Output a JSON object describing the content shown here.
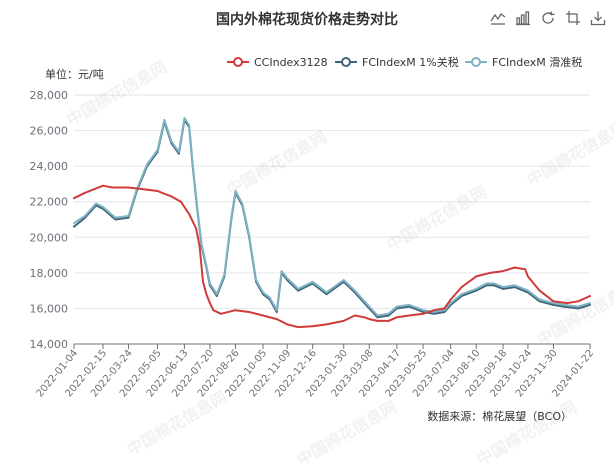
{
  "toolbox": {
    "items": [
      {
        "name": "line-chart-icon"
      },
      {
        "name": "bar-chart-icon"
      },
      {
        "name": "refresh-icon"
      },
      {
        "name": "crop-icon"
      },
      {
        "name": "download-icon"
      }
    ]
  },
  "watermark_text": "中国棉花信息网",
  "colors": {
    "series": [
      "#d03b3b",
      "#3d6479",
      "#7fb3c4"
    ],
    "axis": "#6e7079",
    "grid": "#e3e6ec",
    "text": "#333333"
  },
  "chart_data": {
    "type": "line",
    "title": "国内外棉花现货价格走势对比",
    "yunit": "单位：元/吨",
    "source": "数据来源：棉花展望（BCO）",
    "ylim": [
      14000,
      28000
    ],
    "yticks": [
      14000,
      16000,
      18000,
      20000,
      22000,
      24000,
      26000,
      28000
    ],
    "ytick_labels": [
      "14,000",
      "16,000",
      "18,000",
      "20,000",
      "22,000",
      "24,000",
      "26,000",
      "28,000"
    ],
    "xlim": [
      "2022-01-04",
      "2024-01-22"
    ],
    "xtick_labels": [
      "2022-01-04",
      "2022-02-15",
      "2022-03-24",
      "2022-05-05",
      "2022-06-13",
      "2022-07-20",
      "2022-08-26",
      "2022-10-05",
      "2022-11-09",
      "2022-12-16",
      "2023-01-30",
      "2023-03-08",
      "2023-04-17",
      "2023-05-25",
      "2023-07-04",
      "2023-08-10",
      "2023-09-18",
      "2023-10-24",
      "2023-11-30",
      "2024-01-22"
    ],
    "grid": true,
    "legend_position": "top-right",
    "series": [
      {
        "name": "CCIndex3128",
        "points": [
          [
            "2022-01-04",
            22200
          ],
          [
            "2022-01-20",
            22500
          ],
          [
            "2022-02-15",
            22900
          ],
          [
            "2022-03-01",
            22800
          ],
          [
            "2022-03-24",
            22800
          ],
          [
            "2022-04-15",
            22700
          ],
          [
            "2022-05-05",
            22600
          ],
          [
            "2022-05-25",
            22300
          ],
          [
            "2022-06-08",
            22000
          ],
          [
            "2022-06-20",
            21300
          ],
          [
            "2022-06-30",
            20500
          ],
          [
            "2022-07-05",
            19500
          ],
          [
            "2022-07-10",
            17500
          ],
          [
            "2022-07-15",
            16800
          ],
          [
            "2022-07-20",
            16300
          ],
          [
            "2022-07-25",
            15900
          ],
          [
            "2022-08-05",
            15700
          ],
          [
            "2022-08-26",
            15900
          ],
          [
            "2022-09-15",
            15800
          ],
          [
            "2022-10-05",
            15600
          ],
          [
            "2022-10-25",
            15400
          ],
          [
            "2022-11-09",
            15100
          ],
          [
            "2022-11-25",
            14950
          ],
          [
            "2022-12-16",
            15000
          ],
          [
            "2023-01-05",
            15100
          ],
          [
            "2023-01-30",
            15300
          ],
          [
            "2023-02-15",
            15600
          ],
          [
            "2023-03-01",
            15500
          ],
          [
            "2023-03-08",
            15400
          ],
          [
            "2023-03-20",
            15300
          ],
          [
            "2023-04-05",
            15300
          ],
          [
            "2023-04-17",
            15500
          ],
          [
            "2023-05-05",
            15600
          ],
          [
            "2023-05-25",
            15700
          ],
          [
            "2023-06-10",
            15900
          ],
          [
            "2023-06-25",
            16000
          ],
          [
            "2023-07-04",
            16500
          ],
          [
            "2023-07-20",
            17200
          ],
          [
            "2023-08-10",
            17800
          ],
          [
            "2023-08-30",
            18000
          ],
          [
            "2023-09-18",
            18100
          ],
          [
            "2023-10-05",
            18300
          ],
          [
            "2023-10-20",
            18200
          ],
          [
            "2023-10-24",
            17800
          ],
          [
            "2023-11-10",
            17000
          ],
          [
            "2023-11-30",
            16400
          ],
          [
            "2023-12-20",
            16300
          ],
          [
            "2024-01-05",
            16400
          ],
          [
            "2024-01-22",
            16700
          ]
        ]
      },
      {
        "name": "FCIndexM 1%关税",
        "points": [
          [
            "2022-01-04",
            20600
          ],
          [
            "2022-01-20",
            21100
          ],
          [
            "2022-02-05",
            21800
          ],
          [
            "2022-02-15",
            21600
          ],
          [
            "2022-03-05",
            21000
          ],
          [
            "2022-03-24",
            21100
          ],
          [
            "2022-04-05",
            22600
          ],
          [
            "2022-04-20",
            24000
          ],
          [
            "2022-05-05",
            24800
          ],
          [
            "2022-05-15",
            26500
          ],
          [
            "2022-05-25",
            25300
          ],
          [
            "2022-06-05",
            24700
          ],
          [
            "2022-06-13",
            26600
          ],
          [
            "2022-06-20",
            26200
          ],
          [
            "2022-06-25",
            24000
          ],
          [
            "2022-07-01",
            21800
          ],
          [
            "2022-07-08",
            19500
          ],
          [
            "2022-07-15",
            18300
          ],
          [
            "2022-07-20",
            17300
          ],
          [
            "2022-07-30",
            16700
          ],
          [
            "2022-08-10",
            17800
          ],
          [
            "2022-08-20",
            21000
          ],
          [
            "2022-08-26",
            22500
          ],
          [
            "2022-09-05",
            21800
          ],
          [
            "2022-09-15",
            20000
          ],
          [
            "2022-09-25",
            17500
          ],
          [
            "2022-10-05",
            16800
          ],
          [
            "2022-10-15",
            16500
          ],
          [
            "2022-10-25",
            15800
          ],
          [
            "2022-11-01",
            18000
          ],
          [
            "2022-11-09",
            17600
          ],
          [
            "2022-11-25",
            17000
          ],
          [
            "2022-12-16",
            17400
          ],
          [
            "2023-01-05",
            16800
          ],
          [
            "2023-01-30",
            17500
          ],
          [
            "2023-02-15",
            16900
          ],
          [
            "2023-03-01",
            16300
          ],
          [
            "2023-03-08",
            16000
          ],
          [
            "2023-03-20",
            15500
          ],
          [
            "2023-04-05",
            15600
          ],
          [
            "2023-04-17",
            16000
          ],
          [
            "2023-05-05",
            16100
          ],
          [
            "2023-05-25",
            15800
          ],
          [
            "2023-06-10",
            15700
          ],
          [
            "2023-06-25",
            15800
          ],
          [
            "2023-07-04",
            16200
          ],
          [
            "2023-07-20",
            16700
          ],
          [
            "2023-08-10",
            17000
          ],
          [
            "2023-08-25",
            17300
          ],
          [
            "2023-09-05",
            17300
          ],
          [
            "2023-09-18",
            17100
          ],
          [
            "2023-10-05",
            17200
          ],
          [
            "2023-10-24",
            16900
          ],
          [
            "2023-11-10",
            16400
          ],
          [
            "2023-11-30",
            16200
          ],
          [
            "2023-12-15",
            16100
          ],
          [
            "2024-01-05",
            16000
          ],
          [
            "2024-01-22",
            16200
          ]
        ]
      },
      {
        "name": "FCIndexM 滑准税",
        "points": [
          [
            "2022-01-04",
            20800
          ],
          [
            "2022-01-20",
            21200
          ],
          [
            "2022-02-05",
            21900
          ],
          [
            "2022-02-15",
            21700
          ],
          [
            "2022-03-05",
            21100
          ],
          [
            "2022-03-24",
            21200
          ],
          [
            "2022-04-05",
            22700
          ],
          [
            "2022-04-20",
            24100
          ],
          [
            "2022-05-05",
            24900
          ],
          [
            "2022-05-15",
            26600
          ],
          [
            "2022-05-25",
            25400
          ],
          [
            "2022-06-05",
            24800
          ],
          [
            "2022-06-13",
            26700
          ],
          [
            "2022-06-20",
            26300
          ],
          [
            "2022-06-25",
            24100
          ],
          [
            "2022-07-01",
            21900
          ],
          [
            "2022-07-08",
            19600
          ],
          [
            "2022-07-15",
            18400
          ],
          [
            "2022-07-20",
            17400
          ],
          [
            "2022-07-30",
            16800
          ],
          [
            "2022-08-10",
            17900
          ],
          [
            "2022-08-20",
            21100
          ],
          [
            "2022-08-26",
            22600
          ],
          [
            "2022-09-05",
            21900
          ],
          [
            "2022-09-15",
            20100
          ],
          [
            "2022-09-25",
            17600
          ],
          [
            "2022-10-05",
            16900
          ],
          [
            "2022-10-15",
            16600
          ],
          [
            "2022-10-25",
            15900
          ],
          [
            "2022-11-01",
            18100
          ],
          [
            "2022-11-09",
            17700
          ],
          [
            "2022-11-25",
            17100
          ],
          [
            "2022-12-16",
            17500
          ],
          [
            "2023-01-05",
            16900
          ],
          [
            "2023-01-30",
            17600
          ],
          [
            "2023-02-15",
            17000
          ],
          [
            "2023-03-01",
            16400
          ],
          [
            "2023-03-08",
            16100
          ],
          [
            "2023-03-20",
            15600
          ],
          [
            "2023-04-05",
            15700
          ],
          [
            "2023-04-17",
            16100
          ],
          [
            "2023-05-05",
            16200
          ],
          [
            "2023-05-25",
            15900
          ],
          [
            "2023-06-10",
            15800
          ],
          [
            "2023-06-25",
            15900
          ],
          [
            "2023-07-04",
            16300
          ],
          [
            "2023-07-20",
            16800
          ],
          [
            "2023-08-10",
            17100
          ],
          [
            "2023-08-25",
            17400
          ],
          [
            "2023-09-05",
            17400
          ],
          [
            "2023-09-18",
            17200
          ],
          [
            "2023-10-05",
            17300
          ],
          [
            "2023-10-24",
            17000
          ],
          [
            "2023-11-10",
            16500
          ],
          [
            "2023-11-30",
            16300
          ],
          [
            "2023-12-15",
            16200
          ],
          [
            "2024-01-05",
            16100
          ],
          [
            "2024-01-22",
            16300
          ]
        ]
      }
    ]
  }
}
